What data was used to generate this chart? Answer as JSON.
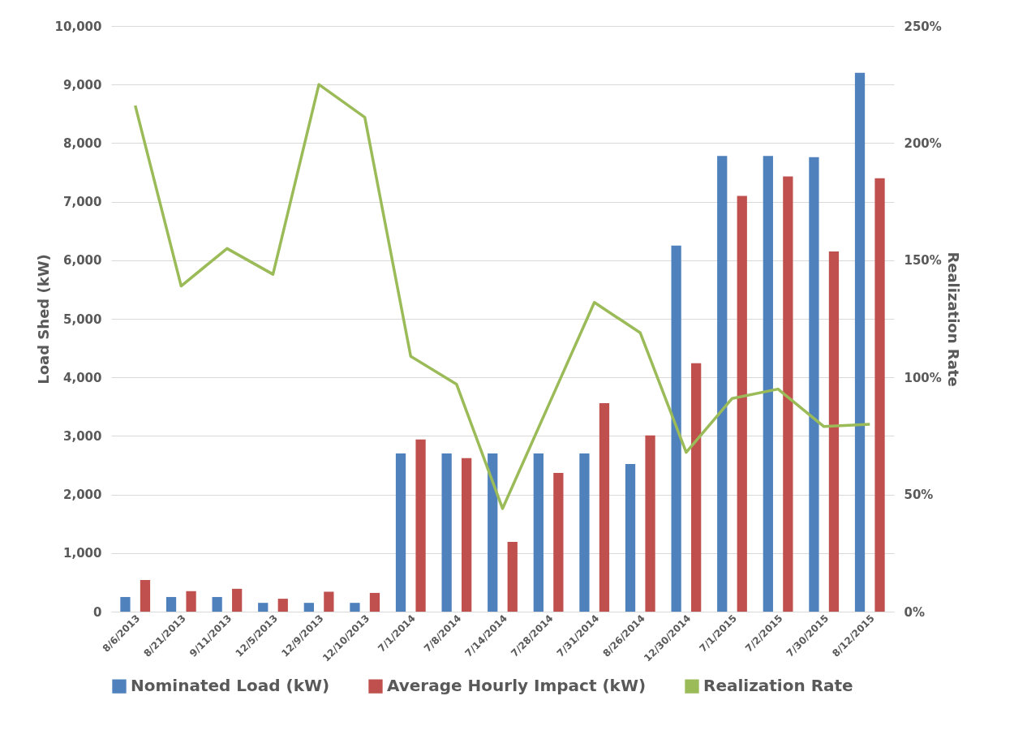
{
  "chart_data": {
    "type": "bar",
    "ylabel": "Load Shed (kW)",
    "y2label": "Realization Rate",
    "categories": [
      "8/6/2013",
      "8/21/2013",
      "9/11/2013",
      "12/5/2013",
      "12/9/2013",
      "12/10/2013",
      "7/1/2014",
      "7/8/2014",
      "7/14/2014",
      "7/28/2014",
      "7/31/2014",
      "8/26/2014",
      "12/30/2014",
      "7/1/2015",
      "7/2/2015",
      "7/30/2015",
      "8/12/2015"
    ],
    "series": [
      {
        "name": "Nominated Load (kW)",
        "color": "#4f81bd",
        "values": [
          250,
          250,
          250,
          150,
          150,
          150,
          2700,
          2700,
          2700,
          2700,
          2700,
          2520,
          6250,
          7780,
          7780,
          7760,
          9200
        ]
      },
      {
        "name": "Average Hourly Impact (kW)",
        "color": "#c0504d",
        "values": [
          540,
          350,
          390,
          220,
          340,
          320,
          2940,
          2620,
          1190,
          2370,
          3560,
          3010,
          4240,
          7100,
          7430,
          6150,
          7400
        ]
      },
      {
        "name": "Realization Rate",
        "type": "line",
        "axis": "y2",
        "color": "#9bbb59",
        "values": [
          216,
          139,
          155,
          144,
          225,
          211,
          109,
          97,
          44,
          88,
          132,
          119,
          68,
          91,
          95,
          79,
          80
        ]
      }
    ],
    "ylim": [
      0,
      10000
    ],
    "yticks": [
      0,
      {
        "value": 1000,
        "label": "1,000"
      },
      {
        "value": 2000,
        "label": "2,000"
      },
      {
        "value": 3000,
        "label": "3,000"
      },
      {
        "value": 4000,
        "label": "4,000"
      },
      {
        "value": 5000,
        "label": "5,000"
      },
      {
        "value": 6000,
        "label": "6,000"
      },
      {
        "value": 7000,
        "label": "7,000"
      },
      {
        "value": 8000,
        "label": "8,000"
      },
      {
        "value": 9000,
        "label": "9,000"
      },
      {
        "value": 10000,
        "label": "10,000"
      }
    ],
    "y2lim": [
      0,
      250
    ],
    "y2ticks": [
      {
        "value": 0,
        "label": "0%"
      },
      {
        "value": 50,
        "label": "50%"
      },
      {
        "value": 100,
        "label": "100%"
      },
      {
        "value": 150,
        "label": "150%"
      },
      {
        "value": 200,
        "label": "200%"
      },
      {
        "value": 250,
        "label": "250%"
      }
    ],
    "grid": "y",
    "legend": "bottom",
    "marker": "none",
    "line_style": "solid"
  }
}
